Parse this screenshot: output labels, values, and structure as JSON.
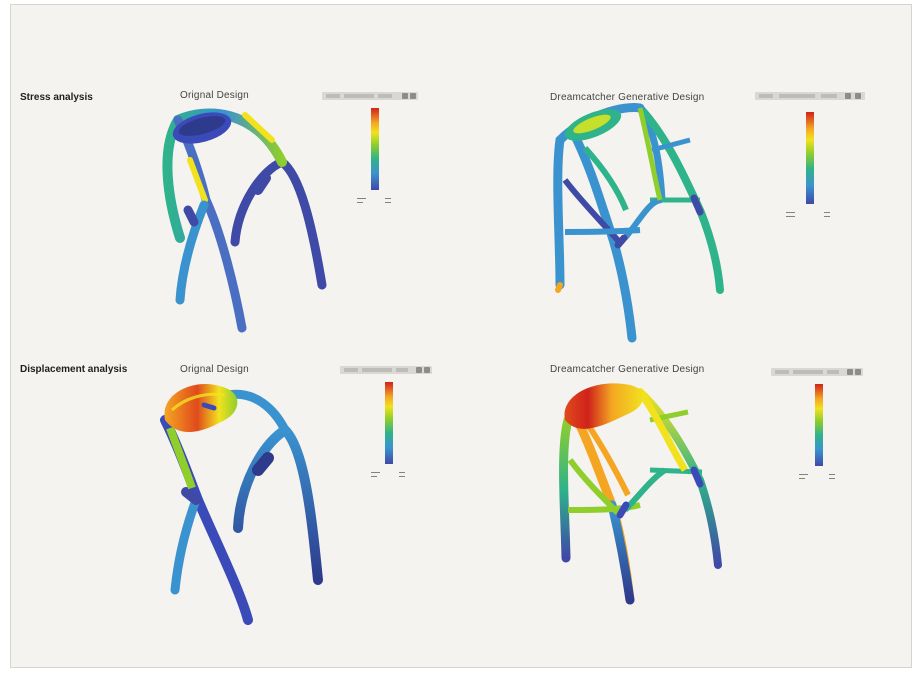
{
  "rows": [
    {
      "label": "Stress analysis",
      "panels": [
        {
          "title": "Orignal Design"
        },
        {
          "title": "Dreamcatcher Generative Design"
        }
      ]
    },
    {
      "label": "Displacement analysis",
      "panels": [
        {
          "title": "Orignal Design"
        },
        {
          "title": "Dreamcatcher Generative Design"
        }
      ]
    }
  ],
  "colors": {
    "red": "#d0221c",
    "orange": "#f4a623",
    "yellow": "#f2e21e",
    "green": "#8fce2b",
    "teal": "#2fb38a",
    "blue": "#3a93cf",
    "navy": "#3f49a6",
    "dark_navy": "#2e3a8c"
  }
}
